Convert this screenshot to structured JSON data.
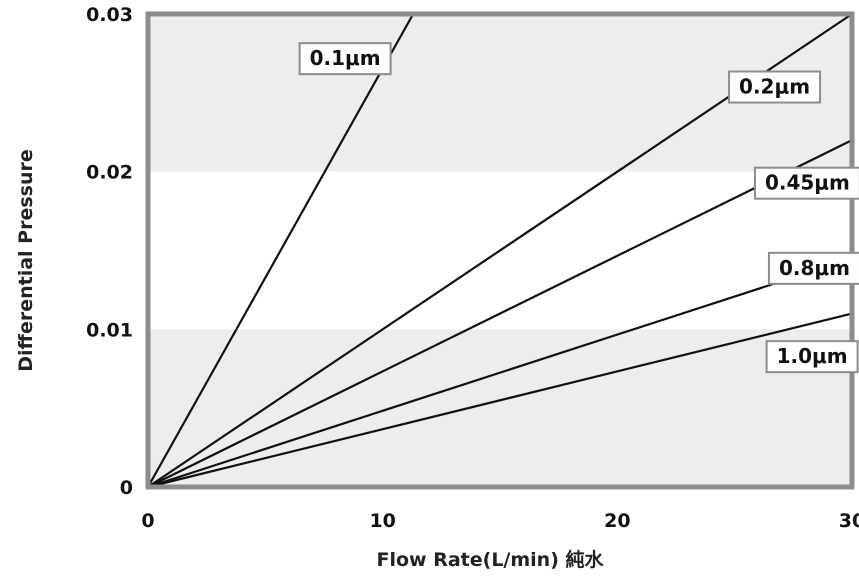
{
  "chart_data": {
    "type": "line",
    "xlabel": "Flow Rate(L/min) 純水",
    "ylabel": "Differential Pressure",
    "xlim": [
      0,
      30
    ],
    "ylim": [
      0,
      0.03
    ],
    "x_ticks": [
      "0",
      "10",
      "20",
      "30"
    ],
    "y_ticks": [
      "0",
      "0.01",
      "0.02",
      "0.03"
    ],
    "grid": "alternating horizontal bands",
    "colors": {
      "band": "#ededed",
      "frame": "#8c8c8c",
      "line": "#111111",
      "label_border": "#8c8c8c"
    },
    "series": [
      {
        "name": "0.1μm",
        "x": [
          0,
          11.3
        ],
        "values": [
          0,
          0.03
        ]
      },
      {
        "name": "0.2μm",
        "x": [
          0,
          30
        ],
        "values": [
          0,
          0.03
        ]
      },
      {
        "name": "0.45μm",
        "x": [
          0,
          30
        ],
        "values": [
          0,
          0.022
        ]
      },
      {
        "name": "0.8μm",
        "x": [
          0,
          30
        ],
        "values": [
          0,
          0.0145
        ]
      },
      {
        "name": "1.0μm",
        "x": [
          0,
          30
        ],
        "values": [
          0,
          0.011
        ]
      }
    ]
  }
}
